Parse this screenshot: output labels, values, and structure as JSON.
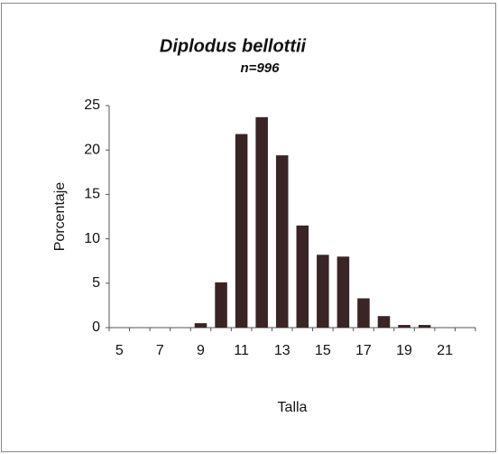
{
  "chart_data": {
    "type": "bar",
    "title": "Diplodus bellottii",
    "subtitle": "n=996",
    "x_label": "Talla",
    "y_label": "Porcentaje",
    "categories": [
      5,
      null,
      7,
      null,
      9,
      null,
      11,
      null,
      13,
      null,
      15,
      null,
      17,
      null,
      19,
      null,
      21,
      null
    ],
    "values": [
      0,
      0,
      0,
      0,
      0.5,
      5.1,
      21.8,
      23.7,
      19.4,
      11.5,
      8.2,
      8.0,
      3.3,
      1.3,
      0.3,
      0.3,
      0,
      0
    ],
    "color": "#3a2426",
    "ylim": [
      0,
      25
    ],
    "yticks": [
      0,
      5,
      10,
      15,
      20,
      25
    ],
    "grid": false
  }
}
